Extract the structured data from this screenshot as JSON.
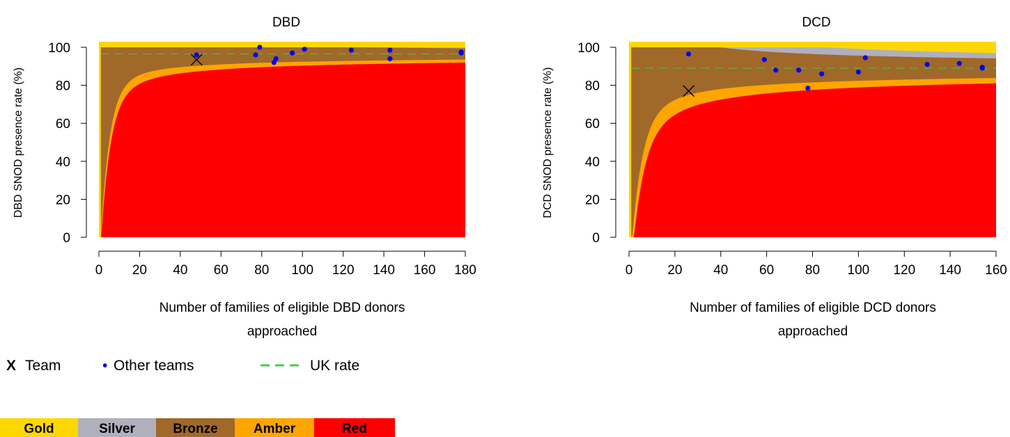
{
  "legend": {
    "team_marker": "X",
    "team_label": "Team",
    "others_marker": "•",
    "others_label": "Other teams",
    "uk_label": "UK rate"
  },
  "bands": [
    {
      "label": "Gold",
      "color": "#FFD700"
    },
    {
      "label": "Silver",
      "color": "#B0B0BC"
    },
    {
      "label": "Bronze",
      "color": "#A0692A"
    },
    {
      "label": "Amber",
      "color": "#FFA500"
    },
    {
      "label": "Red",
      "color": "#FF0000"
    }
  ],
  "colors": {
    "team": "#000000",
    "others": "#0000EE",
    "uk": "#44CC44"
  },
  "chart_data": [
    {
      "type": "scatter",
      "title": "DBD",
      "xlabel": [
        "Number of families of eligible DBD donors",
        "approached"
      ],
      "ylabel": "DBD SNOD presence rate (%)",
      "xlim": [
        0,
        180
      ],
      "ylim": [
        0,
        100
      ],
      "xticks": [
        0,
        20,
        40,
        60,
        80,
        100,
        120,
        140,
        160,
        180
      ],
      "yticks": [
        0,
        20,
        40,
        60,
        80,
        100
      ],
      "uk_rate": 96.5,
      "team": {
        "x": 48,
        "y": 93.5
      },
      "others": [
        {
          "x": 48,
          "y": 96
        },
        {
          "x": 77,
          "y": 96
        },
        {
          "x": 79,
          "y": 100
        },
        {
          "x": 86,
          "y": 92
        },
        {
          "x": 87,
          "y": 94
        },
        {
          "x": 95,
          "y": 97
        },
        {
          "x": 101,
          "y": 99
        },
        {
          "x": 124,
          "y": 98.5
        },
        {
          "x": 143,
          "y": 98.5
        },
        {
          "x": 143,
          "y": 94
        },
        {
          "x": 178,
          "y": 97
        },
        {
          "x": 178,
          "y": 97.5
        }
      ]
    },
    {
      "type": "scatter",
      "title": "DCD",
      "xlabel": [
        "Number of families of eligible DCD donors",
        "approached"
      ],
      "ylabel": "DCD SNOD presence rate (%)",
      "xlim": [
        0,
        160
      ],
      "ylim": [
        0,
        100
      ],
      "xticks": [
        0,
        20,
        40,
        60,
        80,
        100,
        120,
        140,
        160
      ],
      "yticks": [
        0,
        20,
        40,
        60,
        80,
        100
      ],
      "uk_rate": 89,
      "team": {
        "x": 26,
        "y": 77
      },
      "others": [
        {
          "x": 26,
          "y": 96.5
        },
        {
          "x": 59,
          "y": 93.5
        },
        {
          "x": 64,
          "y": 88
        },
        {
          "x": 74,
          "y": 88
        },
        {
          "x": 78,
          "y": 78.5
        },
        {
          "x": 84,
          "y": 86
        },
        {
          "x": 100,
          "y": 87
        },
        {
          "x": 103,
          "y": 94.5
        },
        {
          "x": 130,
          "y": 91
        },
        {
          "x": 144,
          "y": 91.5
        },
        {
          "x": 154,
          "y": 89
        },
        {
          "x": 154,
          "y": 89.5
        }
      ]
    }
  ]
}
